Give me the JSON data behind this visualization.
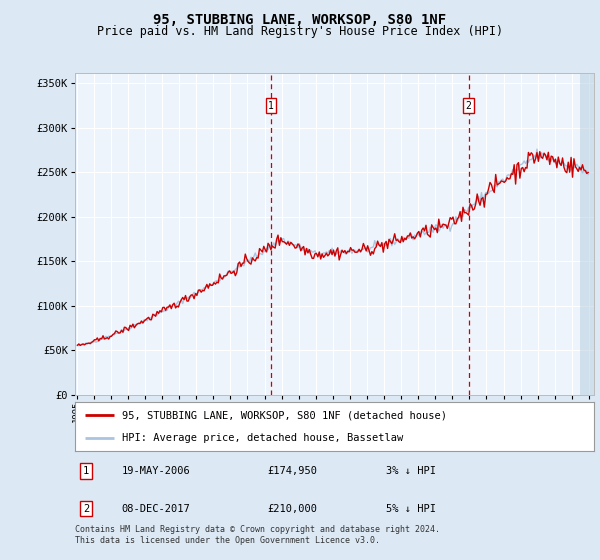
{
  "title": "95, STUBBING LANE, WORKSOP, S80 1NF",
  "subtitle": "Price paid vs. HM Land Registry's House Price Index (HPI)",
  "legend_line1": "95, STUBBING LANE, WORKSOP, S80 1NF (detached house)",
  "legend_line2": "HPI: Average price, detached house, Bassetlaw",
  "footnote": "Contains HM Land Registry data © Crown copyright and database right 2024.\nThis data is licensed under the Open Government Licence v3.0.",
  "transaction1_label": "1",
  "transaction1_date": "19-MAY-2006",
  "transaction1_price": "£174,950",
  "transaction1_hpi": "3% ↓ HPI",
  "transaction2_label": "2",
  "transaction2_date": "08-DEC-2017",
  "transaction2_price": "£210,000",
  "transaction2_hpi": "5% ↓ HPI",
  "hpi_line_color": "#aac4e0",
  "price_line_color": "#cc0000",
  "bg_color": "#dce9f5",
  "plot_bg_color": "#eef4fb",
  "grid_color": "#ffffff",
  "annotation_box_color": "#cc0000",
  "vline_color": "#cc0000",
  "yticks": [
    0,
    50000,
    100000,
    150000,
    200000,
    250000,
    300000,
    350000
  ],
  "ytick_labels": [
    "£0",
    "£50K",
    "£100K",
    "£150K",
    "£200K",
    "£250K",
    "£300K",
    "£350K"
  ],
  "xstart_year": 1995,
  "xend_year": 2025
}
